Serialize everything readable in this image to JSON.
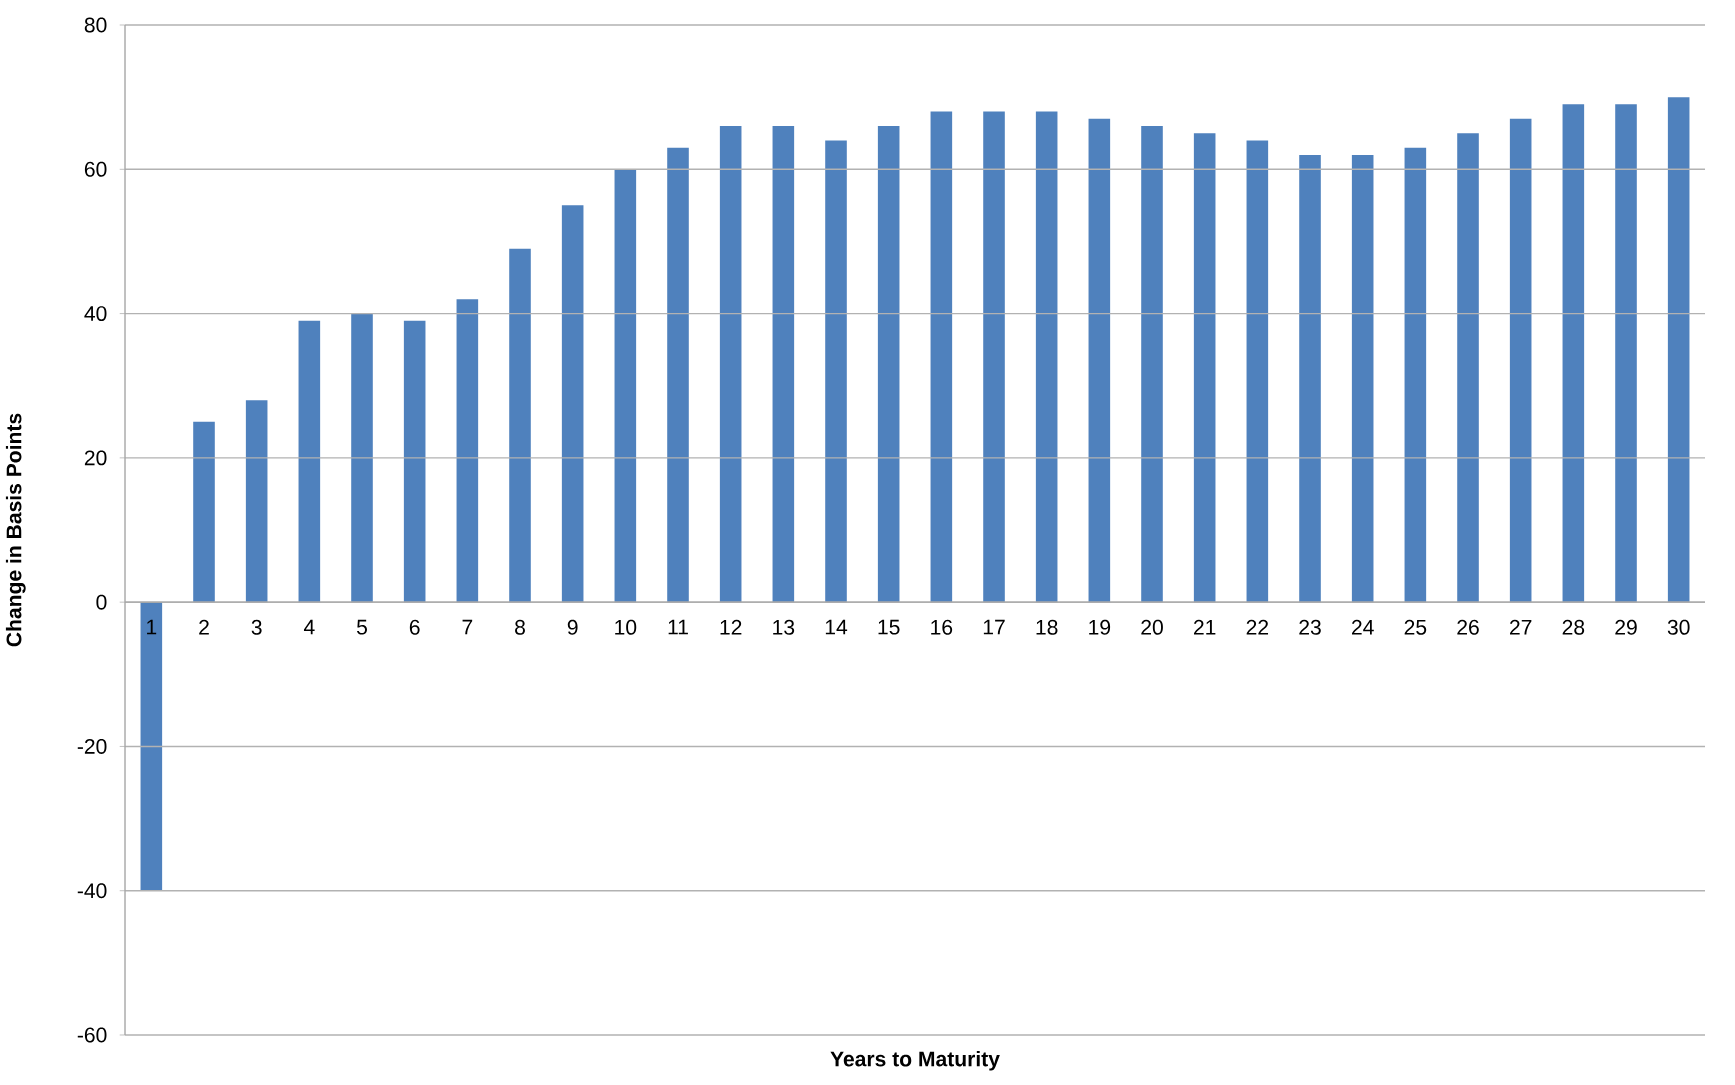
{
  "chart_data": {
    "type": "bar",
    "xlabel": "Years to Maturity",
    "ylabel": "Change in Basis Points",
    "categories": [
      "1",
      "2",
      "3",
      "4",
      "5",
      "6",
      "7",
      "8",
      "9",
      "10",
      "11",
      "12",
      "13",
      "14",
      "15",
      "16",
      "17",
      "18",
      "19",
      "20",
      "21",
      "22",
      "23",
      "24",
      "25",
      "26",
      "27",
      "28",
      "29",
      "30"
    ],
    "values": [
      -40,
      25,
      28,
      39,
      40,
      39,
      42,
      49,
      55,
      60,
      63,
      66,
      66,
      64,
      66,
      68,
      68,
      68,
      67,
      66,
      65,
      64,
      62,
      62,
      63,
      65,
      67,
      69,
      69,
      70
    ],
    "color": "#4f81bd",
    "ylim": [
      -60,
      80
    ],
    "yticks": [
      -60,
      -40,
      -20,
      0,
      20,
      40,
      60,
      80
    ],
    "grid": "y"
  }
}
